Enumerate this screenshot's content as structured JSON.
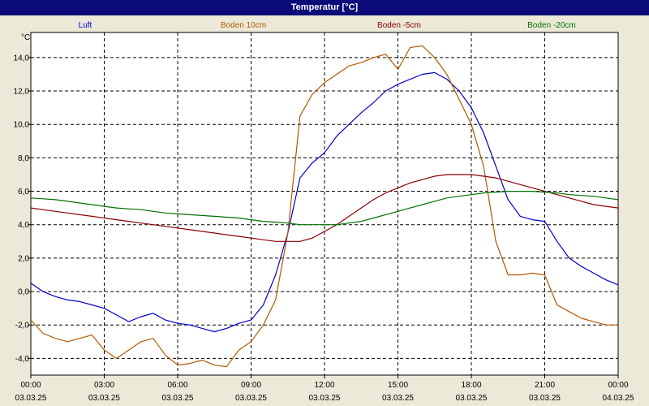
{
  "window": {
    "title": "Temperatur [°C]"
  },
  "chart_data": {
    "type": "line",
    "title": "Temperatur [°C]",
    "ylabel": "°C",
    "xlabel": "",
    "ylim": [
      -5.0,
      15.5
    ],
    "xlim": [
      0,
      24
    ],
    "grid": true,
    "legend_position": "top",
    "y_ticks": [
      "14,0",
      "12,0",
      "10,0",
      "8,0",
      "6,0",
      "4,0",
      "2,0",
      "0,0",
      "-2,0",
      "-4,0"
    ],
    "x_ticks": [
      {
        "time": "00:00",
        "date": "03.03.25"
      },
      {
        "time": "03:00",
        "date": "03.03.25"
      },
      {
        "time": "06:00",
        "date": "03.03.25"
      },
      {
        "time": "09:00",
        "date": "03.03.25"
      },
      {
        "time": "12:00",
        "date": "03.03.25"
      },
      {
        "time": "15:00",
        "date": "03.03.25"
      },
      {
        "time": "18:00",
        "date": "03.03.25"
      },
      {
        "time": "21:00",
        "date": "03.03.25"
      },
      {
        "time": "00:00",
        "date": "04.03.25"
      }
    ],
    "series": [
      {
        "name": "Luft",
        "color": "#0000cc",
        "x": [
          0,
          0.5,
          1,
          1.5,
          2,
          2.5,
          3,
          3.5,
          4,
          4.5,
          5,
          5.5,
          6,
          6.5,
          7,
          7.5,
          8,
          8.5,
          9,
          9.5,
          10,
          10.5,
          11,
          11.5,
          12,
          12.5,
          13,
          13.5,
          14,
          14.5,
          15,
          15.5,
          16,
          16.5,
          17,
          17.5,
          18,
          18.5,
          19,
          19.5,
          20,
          20.5,
          21,
          21.5,
          22,
          22.5,
          23,
          23.5,
          24
        ],
        "y": [
          0.5,
          0.0,
          -0.3,
          -0.5,
          -0.6,
          -0.8,
          -1.0,
          -1.4,
          -1.8,
          -1.5,
          -1.3,
          -1.7,
          -1.9,
          -2.0,
          -2.2,
          -2.4,
          -2.2,
          -1.9,
          -1.7,
          -0.8,
          1.0,
          3.5,
          6.8,
          7.7,
          8.3,
          9.3,
          10.0,
          10.7,
          11.3,
          12.0,
          12.4,
          12.7,
          13.0,
          13.1,
          12.7,
          12.0,
          11.0,
          9.5,
          7.5,
          5.5,
          4.5,
          4.3,
          4.2,
          3.0,
          2.0,
          1.5,
          1.1,
          0.7,
          0.4
        ]
      },
      {
        "name": "Boden 10cm",
        "color": "#b05a00",
        "x": [
          0,
          0.5,
          1,
          1.5,
          2,
          2.5,
          3,
          3.5,
          4,
          4.5,
          5,
          5.5,
          6,
          6.5,
          7,
          7.5,
          8,
          8.5,
          9,
          9.5,
          10,
          10.5,
          11,
          11.5,
          12,
          12.5,
          13,
          13.5,
          14,
          14.5,
          15,
          15.5,
          16,
          16.5,
          17,
          17.5,
          18,
          18.5,
          19,
          19.5,
          20,
          20.5,
          21,
          21.5,
          22,
          22.5,
          23,
          23.5,
          24
        ],
        "y": [
          -1.7,
          -2.5,
          -2.8,
          -3.0,
          -2.8,
          -2.6,
          -3.5,
          -4.0,
          -3.5,
          -3.0,
          -2.8,
          -3.8,
          -4.4,
          -4.3,
          -4.1,
          -4.4,
          -4.5,
          -3.5,
          -3.0,
          -2.0,
          -0.5,
          3.5,
          10.5,
          11.8,
          12.5,
          13.0,
          13.5,
          13.7,
          14.0,
          14.2,
          13.3,
          14.6,
          14.7,
          14.0,
          13.0,
          11.5,
          10.0,
          7.5,
          3.0,
          1.0,
          1.0,
          1.1,
          1.0,
          -0.8,
          -1.2,
          -1.6,
          -1.8,
          -2.0,
          -2.0
        ]
      },
      {
        "name": "Boden -5cm",
        "color": "#8b0000",
        "x": [
          0,
          0.5,
          1,
          1.5,
          2,
          2.5,
          3,
          3.5,
          4,
          4.5,
          5,
          5.5,
          6,
          6.5,
          7,
          7.5,
          8,
          8.5,
          9,
          9.5,
          10,
          10.5,
          11,
          11.5,
          12,
          12.5,
          13,
          13.5,
          14,
          14.5,
          15,
          15.5,
          16,
          16.5,
          17,
          17.5,
          18,
          18.5,
          19,
          19.5,
          20,
          20.5,
          21,
          21.5,
          22,
          22.5,
          23,
          23.5,
          24
        ],
        "y": [
          5.0,
          4.9,
          4.8,
          4.7,
          4.6,
          4.5,
          4.4,
          4.3,
          4.2,
          4.1,
          4.0,
          3.9,
          3.8,
          3.7,
          3.6,
          3.5,
          3.4,
          3.3,
          3.2,
          3.1,
          3.0,
          3.0,
          3.0,
          3.2,
          3.6,
          4.0,
          4.5,
          5.0,
          5.5,
          5.9,
          6.2,
          6.5,
          6.7,
          6.9,
          7.0,
          7.0,
          7.0,
          6.9,
          6.8,
          6.6,
          6.4,
          6.2,
          6.0,
          5.8,
          5.6,
          5.4,
          5.2,
          5.1,
          5.0
        ]
      },
      {
        "name": "Boden -20cm",
        "color": "#007000",
        "x": [
          0,
          0.5,
          1,
          1.5,
          2,
          2.5,
          3,
          3.5,
          4,
          4.5,
          5,
          5.5,
          6,
          6.5,
          7,
          7.5,
          8,
          8.5,
          9,
          9.5,
          10,
          10.5,
          11,
          11.5,
          12,
          12.5,
          13,
          13.5,
          14,
          14.5,
          15,
          15.5,
          16,
          16.5,
          17,
          17.5,
          18,
          18.5,
          19,
          19.5,
          20,
          20.5,
          21,
          21.5,
          22,
          22.5,
          23,
          23.5,
          24
        ],
        "y": [
          5.6,
          5.55,
          5.5,
          5.4,
          5.3,
          5.2,
          5.1,
          5.0,
          4.95,
          4.9,
          4.8,
          4.7,
          4.65,
          4.6,
          4.55,
          4.5,
          4.45,
          4.4,
          4.3,
          4.2,
          4.15,
          4.1,
          4.0,
          4.0,
          4.0,
          4.0,
          4.1,
          4.2,
          4.4,
          4.6,
          4.8,
          5.0,
          5.2,
          5.4,
          5.6,
          5.7,
          5.8,
          5.9,
          5.95,
          6.0,
          6.0,
          6.0,
          5.95,
          5.9,
          5.8,
          5.75,
          5.7,
          5.6,
          5.5
        ]
      }
    ]
  }
}
